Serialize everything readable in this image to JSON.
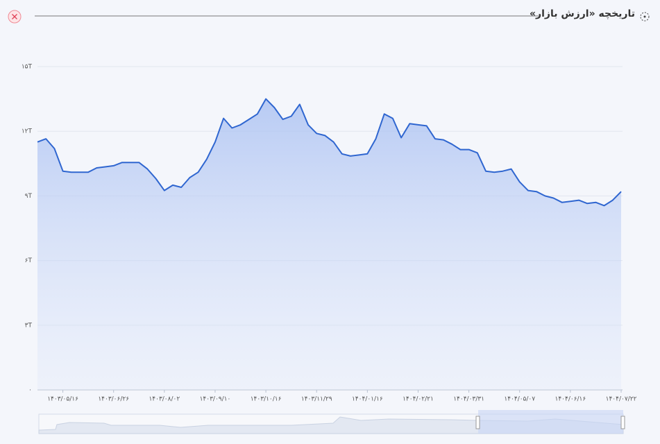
{
  "chart_data": {
    "type": "area",
    "title": "تاریخچه «ارزش بازار»",
    "categories": [
      null,
      null,
      null,
      "۱۴۰۳/۰۵/۱۶",
      null,
      null,
      null,
      null,
      null,
      "۱۴۰۳/۰۶/۲۶",
      null,
      null,
      null,
      null,
      null,
      "۱۴۰۳/۰۸/۰۲",
      null,
      null,
      null,
      null,
      null,
      "۱۴۰۳/۰۹/۱۰",
      null,
      null,
      null,
      null,
      null,
      "۱۴۰۳/۱۰/۱۶",
      null,
      null,
      null,
      null,
      null,
      "۱۴۰۳/۱۱/۲۹",
      null,
      null,
      null,
      null,
      null,
      "۱۴۰۴/۰۱/۱۶",
      null,
      null,
      null,
      null,
      null,
      "۱۴۰۴/۰۲/۲۱",
      null,
      null,
      null,
      null,
      null,
      "۱۴۰۴/۰۳/۳۱",
      null,
      null,
      null,
      null,
      null,
      "۱۴۰۴/۰۵/۰۷",
      null,
      null,
      null,
      null,
      null,
      "۱۴۰۴/۰۶/۱۶",
      null,
      null,
      null,
      null,
      null,
      "۱۴۰۴/۰۷/۲۲"
    ],
    "series": [
      {
        "color": "#2f66d0",
        "values": [
          11.5,
          11.65,
          11.2,
          10.15,
          10.1,
          10.1,
          10.1,
          10.3,
          10.35,
          10.4,
          10.55,
          10.55,
          10.55,
          10.25,
          9.8,
          9.25,
          9.5,
          9.4,
          9.85,
          10.1,
          10.7,
          11.5,
          12.6,
          12.15,
          12.3,
          12.55,
          12.8,
          13.5,
          13.1,
          12.55,
          12.7,
          13.25,
          12.3,
          11.9,
          11.8,
          11.5,
          10.95,
          10.85,
          10.9,
          10.95,
          11.65,
          12.8,
          12.6,
          11.7,
          12.35,
          12.3,
          12.25,
          11.65,
          11.6,
          11.4,
          11.15,
          11.15,
          11.0,
          10.15,
          10.1,
          10.15,
          10.25,
          9.65,
          9.25,
          9.2,
          9.0,
          8.9,
          8.7,
          8.75,
          8.8,
          8.65,
          8.7,
          8.55,
          8.8,
          9.2
        ]
      }
    ],
    "ylim": [
      0,
      15
    ],
    "yticks": [
      {
        "value": 0,
        "label": "۰"
      },
      {
        "value": 3,
        "label": "۳T"
      },
      {
        "value": 6,
        "label": "۶T"
      },
      {
        "value": 9,
        "label": "۹T"
      },
      {
        "value": 12,
        "label": "۱۲T"
      },
      {
        "value": 15,
        "label": "۱۵T"
      }
    ],
    "grid": true
  }
}
